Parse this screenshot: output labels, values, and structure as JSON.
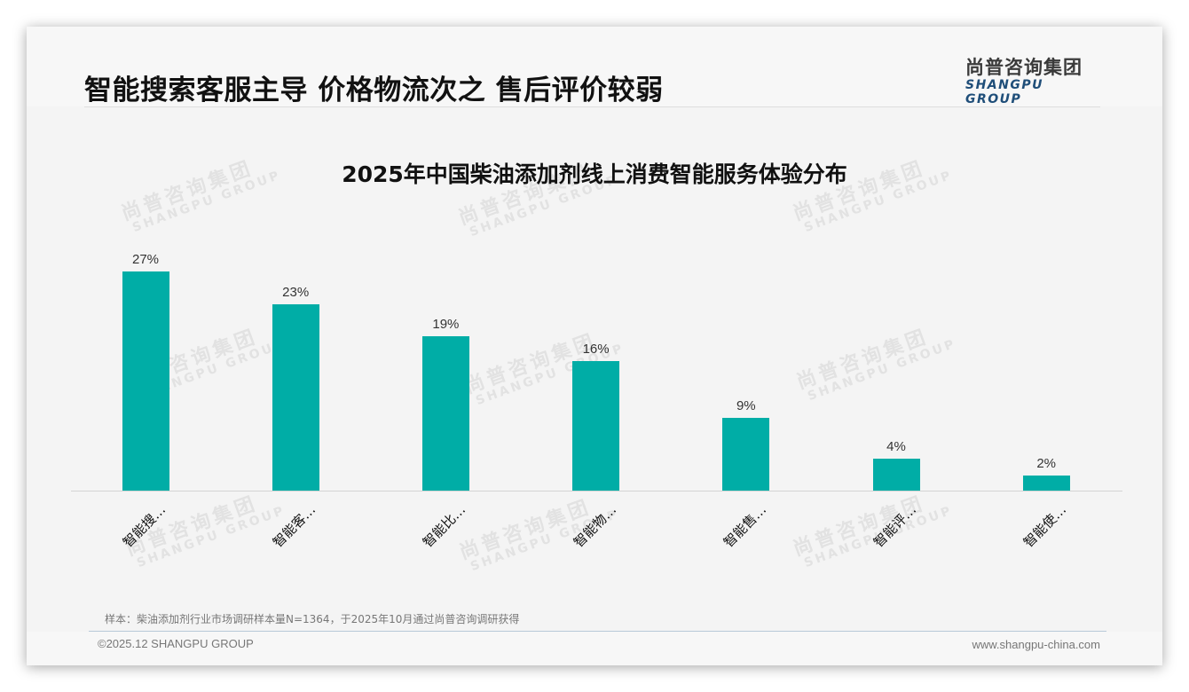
{
  "page": {
    "title": "智能搜索客服主导 价格物流次之 售后评价较弱"
  },
  "logo": {
    "cn": "尚普咨询集团",
    "en": "SHANGPU GROUP"
  },
  "watermark": {
    "cn": "尚普咨询集团",
    "en": "SHANGPU GROUP"
  },
  "colors": {
    "bar": "#00ADA6",
    "axis": "#D4D4D4",
    "background": "#F4F4F4",
    "logo_en": "#1F4E79"
  },
  "chart_data": {
    "type": "bar",
    "title": "2025年中国柴油添加剂线上消费智能服务体验分布",
    "categories": [
      "智能搜…",
      "智能客…",
      "智能比…",
      "智能物…",
      "智能售…",
      "智能评…",
      "智能使…"
    ],
    "values": [
      27,
      23,
      19,
      16,
      9,
      4,
      2
    ],
    "value_labels": [
      "27%",
      "23%",
      "19%",
      "16%",
      "9%",
      "4%",
      "2%"
    ],
    "unit": "%",
    "xlabel": "",
    "ylabel": "",
    "ylim": [
      0,
      30
    ],
    "grid": false,
    "legend": "none",
    "x_tick_rotation": -45
  },
  "footer": {
    "note": "样本：柴油添加剂行业市场调研样本量N=1364，于2025年10月通过尚普咨询调研获得",
    "copyright": "©2025.12 SHANGPU GROUP",
    "website": "www.shangpu-china.com"
  }
}
